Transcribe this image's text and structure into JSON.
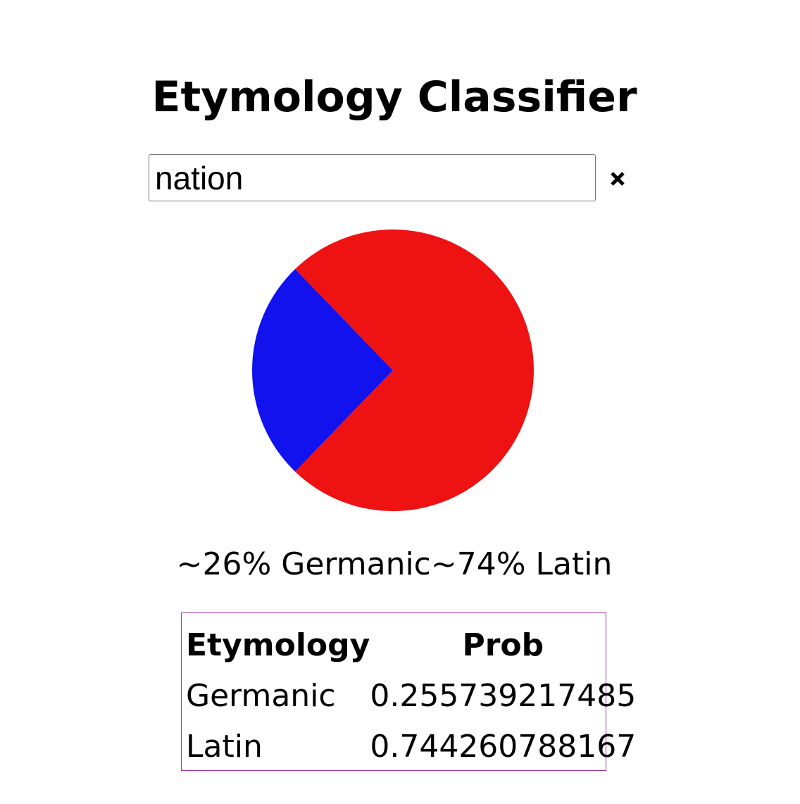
{
  "page": {
    "title": "Etymology Classifier"
  },
  "search": {
    "value": "nation",
    "placeholder": "",
    "clear_icon": "close-icon"
  },
  "chart_data": {
    "type": "pie",
    "categories": [
      "Germanic",
      "Latin"
    ],
    "values": [
      0.255739217485,
      0.744260788167
    ],
    "colors": [
      "#1212ee",
      "#ee1212"
    ],
    "title": "",
    "legend": "none"
  },
  "summary": {
    "germanic": "~26% Germanic",
    "latin": "~74% Latin"
  },
  "table": {
    "headers": {
      "etymology": "Etymology",
      "prob": "Prob"
    },
    "rows": [
      {
        "etymology": "Germanic",
        "prob": "0.255739217485"
      },
      {
        "etymology": "Latin",
        "prob": "0.744260788167"
      }
    ]
  }
}
